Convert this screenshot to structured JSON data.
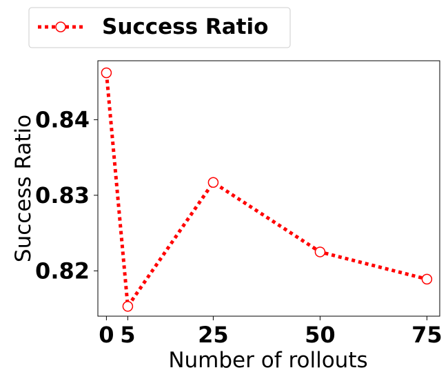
{
  "chart_data": {
    "type": "line",
    "title": "",
    "xlabel": "Number of rollouts",
    "ylabel": "Success Ratio",
    "x": [
      0,
      5,
      25,
      50,
      75
    ],
    "series": [
      {
        "name": "Success Ratio",
        "values": [
          0.8462,
          0.8153,
          0.8317,
          0.8225,
          0.8189
        ],
        "color": "#ff0000",
        "line_style": "dotted",
        "marker": "hollow-circle"
      }
    ],
    "xticks": [
      0,
      5,
      25,
      50,
      75
    ],
    "xtick_labels": [
      "0",
      "5",
      "25",
      "50",
      "75"
    ],
    "yticks": [
      0.82,
      0.83,
      0.84
    ],
    "ytick_labels": [
      "0.82",
      "0.83",
      "0.84"
    ],
    "xlim": [
      -2,
      78
    ],
    "ylim": [
      0.814,
      0.8478
    ],
    "grid": false,
    "legend_position": "top-left, outside plot"
  }
}
